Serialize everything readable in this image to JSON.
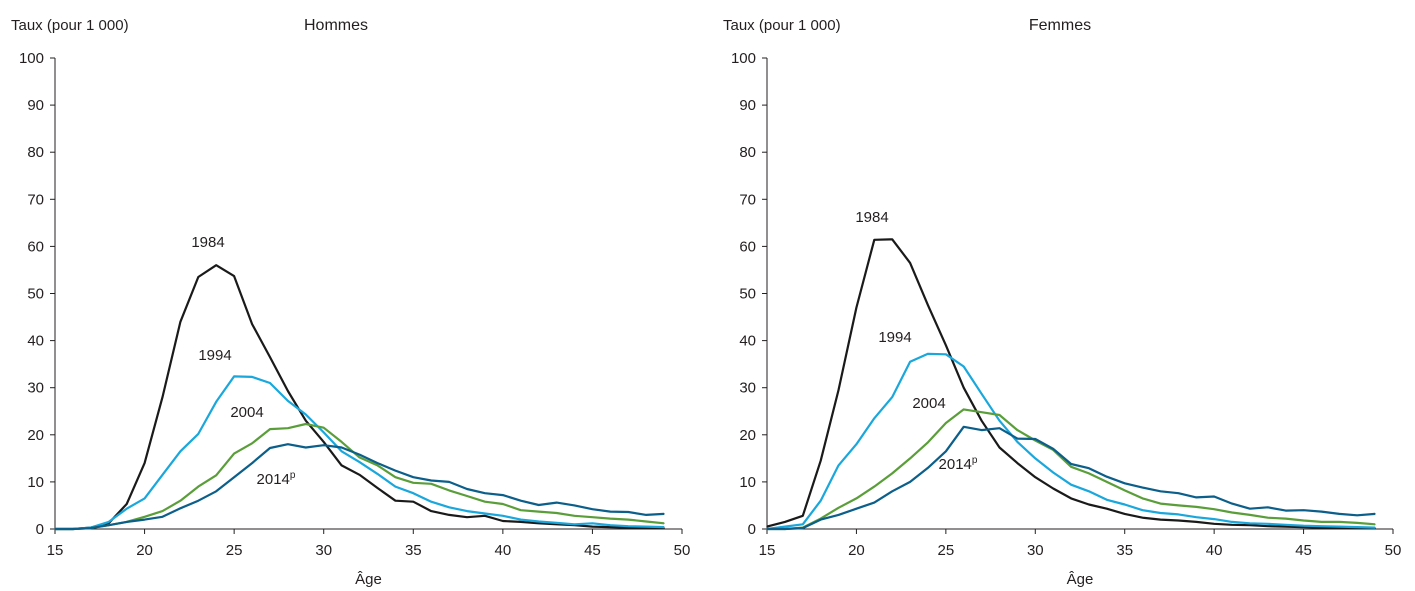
{
  "chart_data": [
    {
      "type": "line",
      "title": "Hommes",
      "ylabel": "Taux (pour 1 000)",
      "xlabel": "Âge",
      "xlim": [
        15,
        50
      ],
      "ylim": [
        0,
        100
      ],
      "xticks": [
        "15",
        "20",
        "25",
        "30",
        "35",
        "40",
        "45",
        "50"
      ],
      "yticks": [
        "0",
        "10",
        "20",
        "30",
        "40",
        "50",
        "60",
        "70",
        "80",
        "90",
        "100"
      ],
      "x": [
        15,
        16,
        17,
        18,
        19,
        20,
        21,
        22,
        23,
        24,
        25,
        26,
        27,
        28,
        29,
        30,
        31,
        32,
        33,
        34,
        35,
        36,
        37,
        38,
        39,
        40,
        41,
        42,
        43,
        44,
        45,
        46,
        47,
        48,
        49
      ],
      "series": [
        {
          "name": "1984",
          "label_main": "1984",
          "label_sup": "",
          "color": "#1a1a1a",
          "values": [
            0,
            0,
            0.3,
            1.2,
            5.3,
            14,
            28,
            44,
            53.5,
            56,
            53.7,
            43.5,
            36.5,
            29.3,
            23,
            18.5,
            13.5,
            11.5,
            8.7,
            6,
            5.8,
            3.8,
            3,
            2.5,
            2.8,
            1.7,
            1.5,
            1.2,
            1,
            0.8,
            0.5,
            0.4,
            0.3,
            0.2,
            0.2
          ]
        },
        {
          "name": "1994",
          "label_main": "1994",
          "label_sup": "",
          "color": "#1aa7dc",
          "values": [
            0,
            0,
            0.3,
            1.5,
            4.3,
            6.5,
            11.5,
            16.5,
            20.2,
            27,
            32.4,
            32.3,
            31,
            27.2,
            24.3,
            20.5,
            16.5,
            14.2,
            11.7,
            9,
            7.6,
            5.8,
            4.6,
            3.8,
            3.3,
            2.8,
            2,
            1.6,
            1.3,
            1,
            1.2,
            0.8,
            0.6,
            0.5,
            0.4
          ]
        },
        {
          "name": "2004",
          "label_main": "2004",
          "label_sup": "",
          "color": "#5a9e3a",
          "values": [
            0,
            0,
            0.2,
            0.8,
            1.5,
            2.6,
            3.8,
            6,
            9,
            11.4,
            16,
            18.2,
            21.2,
            21.4,
            22.3,
            21.5,
            18.5,
            15.2,
            13.5,
            11,
            9.8,
            9.6,
            8.2,
            7,
            5.8,
            5.3,
            4,
            3.7,
            3.4,
            2.8,
            2.5,
            2.2,
            2,
            1.6,
            1.2
          ]
        },
        {
          "name": "2014p",
          "label_main": "2014",
          "label_sup": "p",
          "color": "#0b5f8a",
          "values": [
            0,
            0,
            0.2,
            0.8,
            1.5,
            2,
            2.6,
            4.4,
            6,
            8,
            11,
            14,
            17.2,
            18,
            17.3,
            17.8,
            17.3,
            15.8,
            14,
            12.4,
            11,
            10.3,
            10,
            8.5,
            7.6,
            7.2,
            6,
            5.1,
            5.6,
            5,
            4.2,
            3.7,
            3.6,
            3,
            3.2
          ]
        }
      ]
    },
    {
      "type": "line",
      "title": "Femmes",
      "ylabel": "Taux (pour 1 000)",
      "xlabel": "Âge",
      "xlim": [
        15,
        50
      ],
      "ylim": [
        0,
        100
      ],
      "xticks": [
        "15",
        "20",
        "25",
        "30",
        "35",
        "40",
        "45",
        "50"
      ],
      "yticks": [
        "0",
        "10",
        "20",
        "30",
        "40",
        "50",
        "60",
        "70",
        "80",
        "90",
        "100"
      ],
      "x": [
        15,
        16,
        17,
        18,
        19,
        20,
        21,
        22,
        23,
        24,
        25,
        26,
        27,
        28,
        29,
        30,
        31,
        32,
        33,
        34,
        35,
        36,
        37,
        38,
        39,
        40,
        41,
        42,
        43,
        44,
        45,
        46,
        47,
        48,
        49
      ],
      "series": [
        {
          "name": "1984",
          "label_main": "1984",
          "label_sup": "",
          "color": "#1a1a1a",
          "values": [
            0.5,
            1.5,
            2.8,
            14.5,
            29.5,
            47,
            61.4,
            61.5,
            56.5,
            47.5,
            39,
            30,
            23,
            17.3,
            14,
            11,
            8.6,
            6.5,
            5.2,
            4.3,
            3.2,
            2.4,
            2,
            1.8,
            1.5,
            1.1,
            0.9,
            0.8,
            0.6,
            0.5,
            0.4,
            0.3,
            0.3,
            0.2,
            0.2
          ]
        },
        {
          "name": "1994",
          "label_main": "1994",
          "label_sup": "",
          "color": "#1aa7dc",
          "values": [
            0,
            0.5,
            1,
            6,
            13.5,
            18,
            23.5,
            28,
            35.5,
            37.2,
            37.1,
            34.5,
            28.7,
            23,
            18.5,
            15,
            12,
            9.4,
            8,
            6.2,
            5.2,
            4,
            3.4,
            3.1,
            2.5,
            2.1,
            1.5,
            1.2,
            1.1,
            0.9,
            0.7,
            0.6,
            0.5,
            0.4,
            0.3
          ]
        },
        {
          "name": "2004",
          "label_main": "2004",
          "label_sup": "",
          "color": "#5a9e3a",
          "values": [
            0,
            0,
            0.3,
            2.2,
            4.5,
            6.5,
            9,
            11.8,
            15,
            18.4,
            22.5,
            25.4,
            24.8,
            24.2,
            21,
            18.8,
            16.8,
            13.2,
            11.8,
            10,
            8.2,
            6.5,
            5.4,
            5,
            4.7,
            4.2,
            3.5,
            3,
            2.4,
            2.2,
            1.8,
            1.5,
            1.5,
            1.3,
            1
          ]
        },
        {
          "name": "2014p",
          "label_main": "2014",
          "label_sup": "p",
          "color": "#0b5f8a",
          "values": [
            0,
            0,
            0.2,
            2,
            3,
            4.3,
            5.6,
            8,
            10,
            13,
            16.5,
            21.7,
            21,
            21.4,
            19.2,
            19.1,
            17,
            13.8,
            12.9,
            11.1,
            9.7,
            8.8,
            8,
            7.6,
            6.7,
            6.9,
            5.4,
            4.3,
            4.6,
            3.9,
            4,
            3.7,
            3.2,
            2.9,
            3.2
          ]
        }
      ]
    }
  ]
}
